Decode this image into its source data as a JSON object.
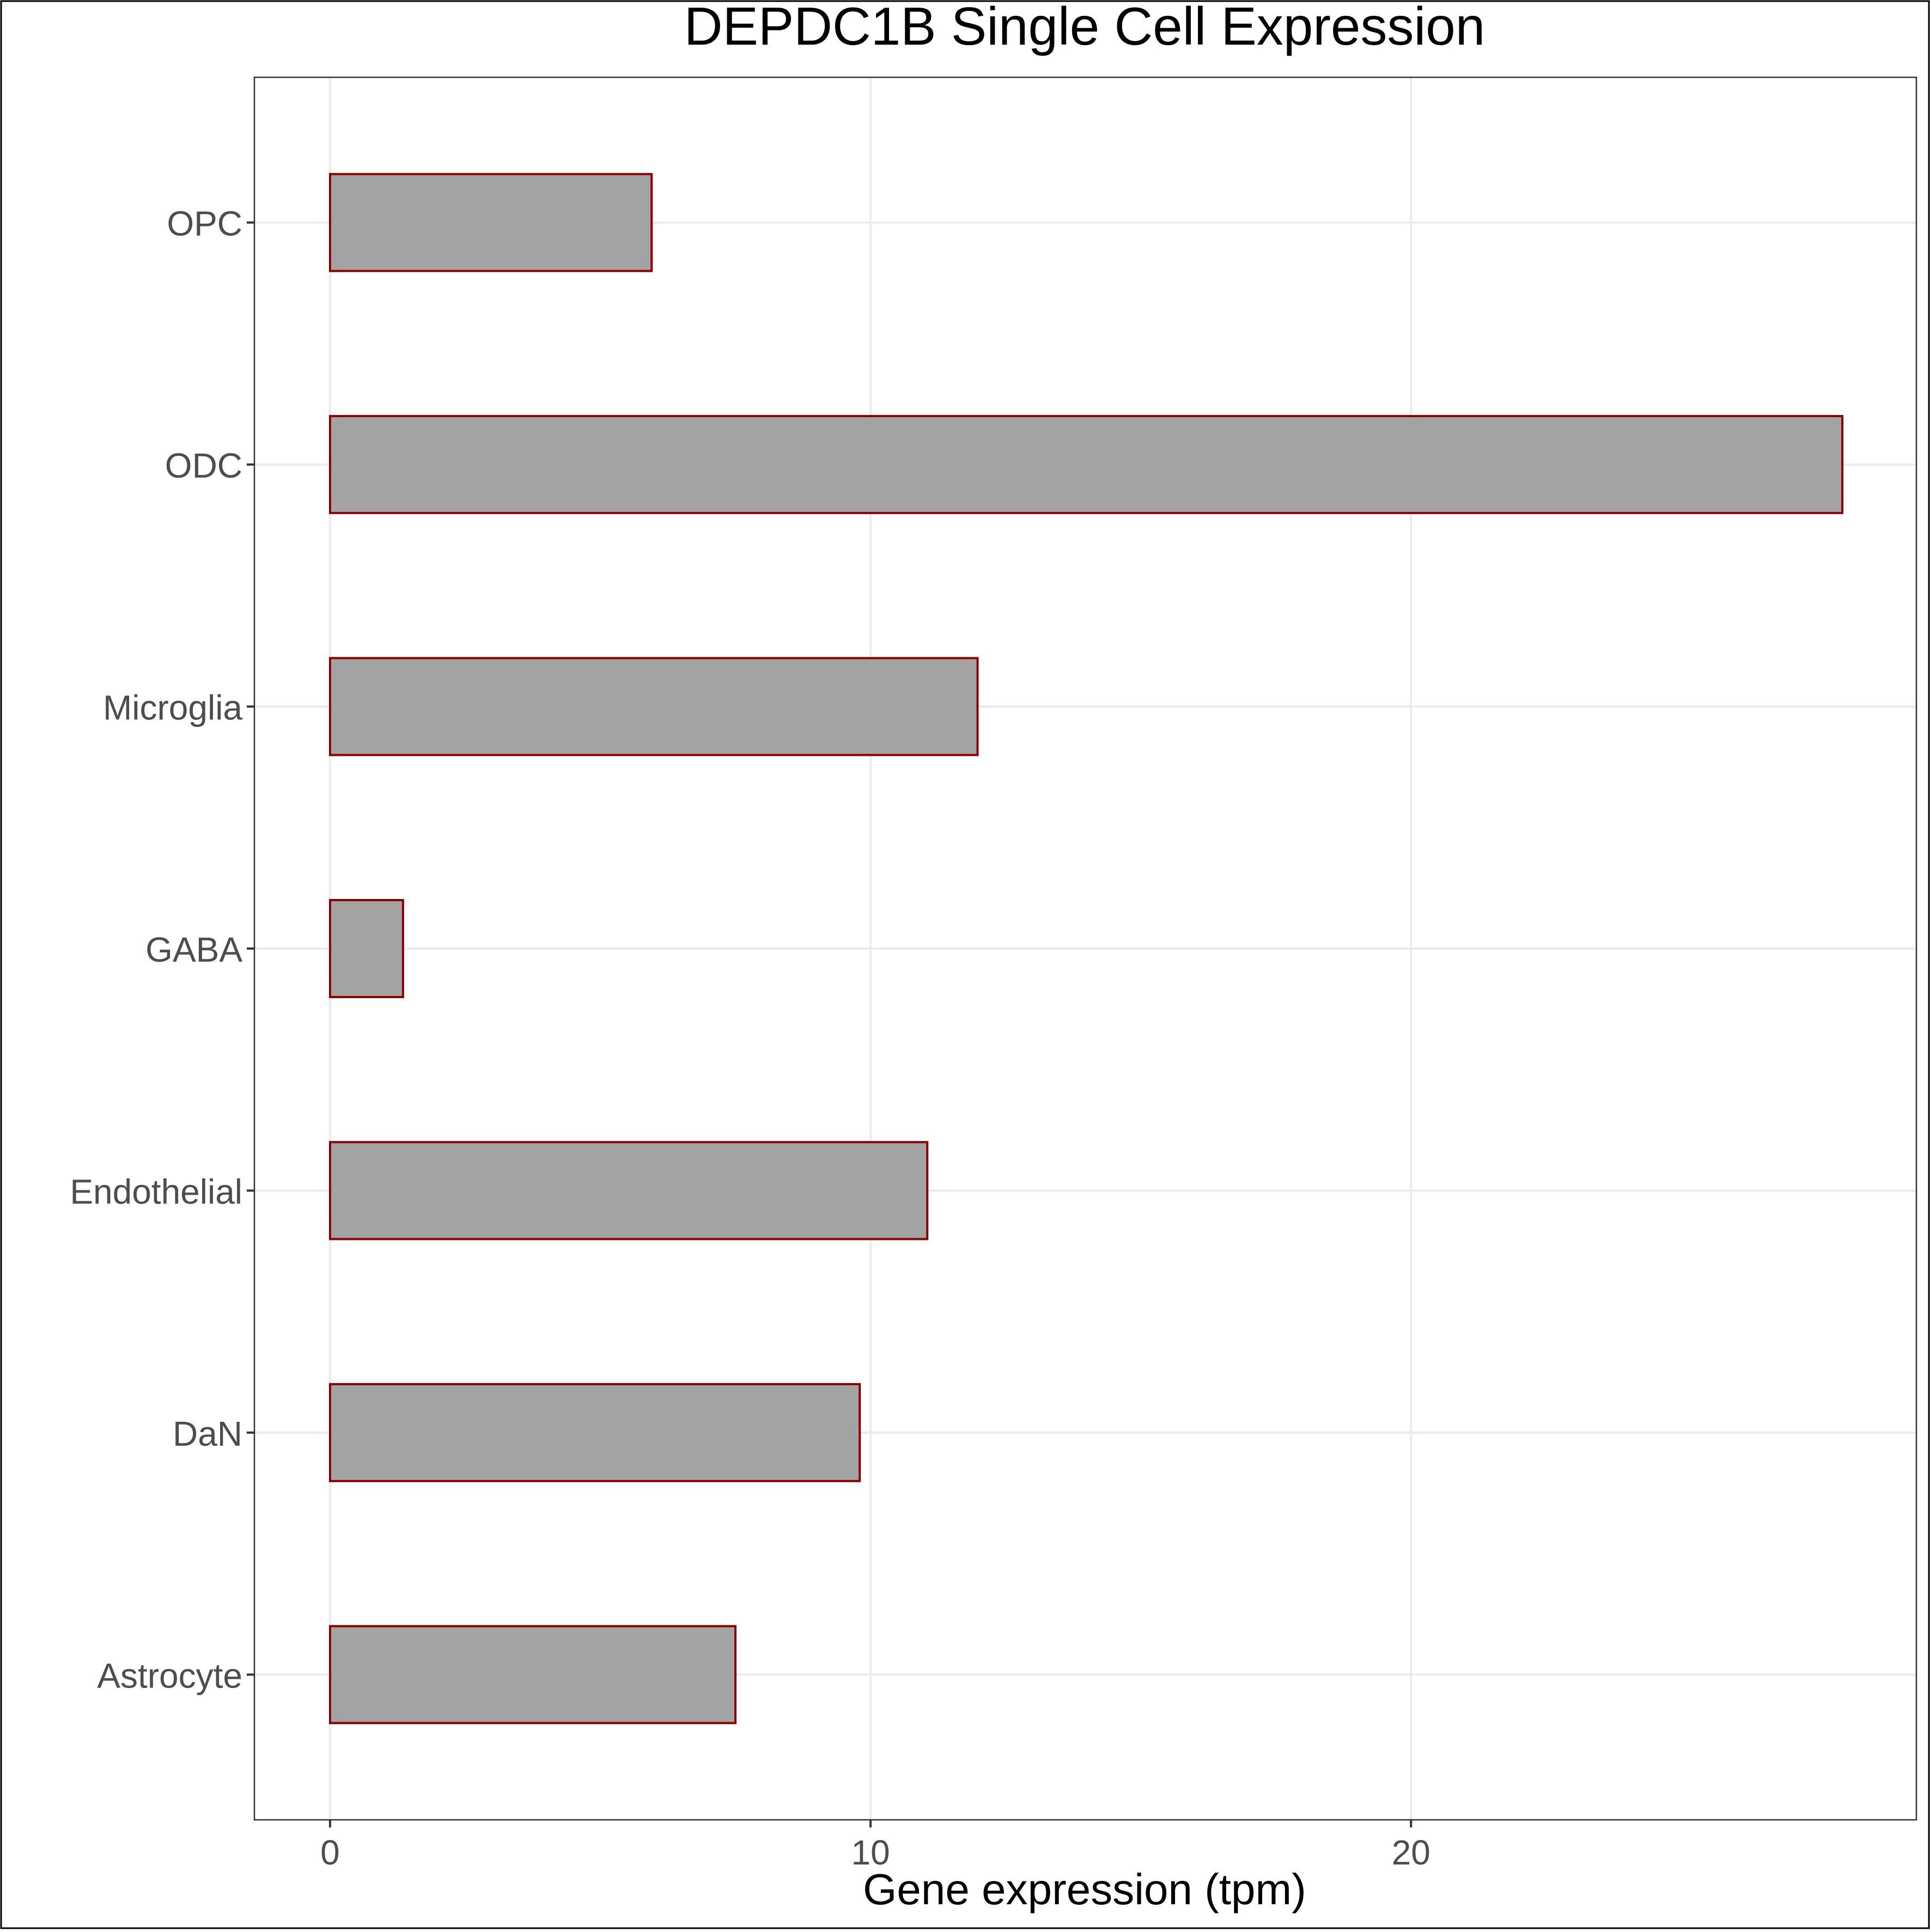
{
  "chart_data": {
    "type": "bar",
    "orientation": "horizontal",
    "title": "DEPDC1B Single Cell Expression",
    "xlabel": "Gene expression (tpm)",
    "ylabel": "",
    "categories": [
      "Astrocyte",
      "DaN",
      "Endothelial",
      "GABA",
      "Microglia",
      "ODC",
      "OPC"
    ],
    "values": [
      7.5,
      9.8,
      11.05,
      1.35,
      11.98,
      27.98,
      5.95
    ],
    "xlim": [
      -1.4,
      29.35
    ],
    "xticks": [
      0,
      10,
      20
    ],
    "xtick_labels": [
      "0",
      "10",
      "20"
    ],
    "grid": true,
    "legend": "none",
    "colors": {
      "bar_fill": "#a3a3a3",
      "bar_stroke": "#8b0000",
      "grid": "#ebebeb",
      "panel_border": "#333333",
      "tick_text": "#4d4d4d",
      "title_text": "#000000"
    }
  }
}
